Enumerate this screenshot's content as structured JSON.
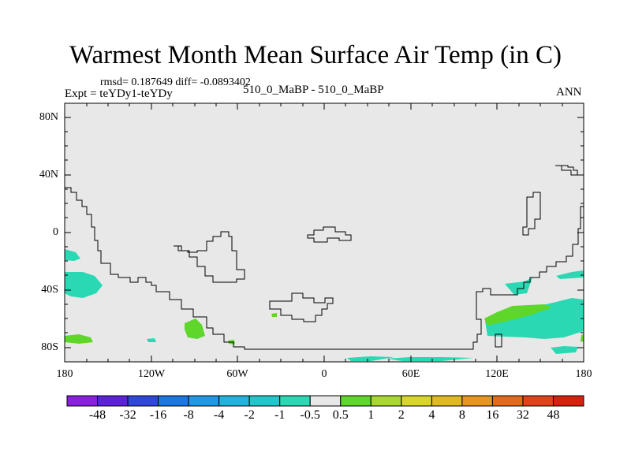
{
  "title": "Warmest Month Mean Surface Air Temp (in C)",
  "stats": "rmsd= 0.187649  diff= -0.0893402",
  "experiment": "Expt = teYDy1-teYDy",
  "center_label": "510_0_MaBP - 510_0_MaBP",
  "period": "ANN",
  "lat_ticks": [
    "80N",
    "40N",
    "0",
    "40S",
    "80S"
  ],
  "lon_ticks": [
    "180",
    "120W",
    "60W",
    "0",
    "60E",
    "120E",
    "180"
  ],
  "colorbar": {
    "labels": [
      "-48",
      "-32",
      "-16",
      "-8",
      "-4",
      "-2",
      "-1",
      "-0.5",
      "0.5",
      "1",
      "2",
      "4",
      "8",
      "16",
      "32",
      "48"
    ],
    "colors": [
      "#8a1fe0",
      "#5b22d9",
      "#2f48dc",
      "#1a78e0",
      "#1f99e6",
      "#22b3dc",
      "#1fc6cc",
      "#2ad9b4",
      "#e8e8e8",
      "#5ed62a",
      "#a8d830",
      "#d9d62a",
      "#e0b81f",
      "#e6951f",
      "#e36a1a",
      "#e0421a",
      "#d8200f"
    ]
  },
  "colors": {
    "land_background": "#e8e8e8",
    "cool_anomaly": "#2ad9b4",
    "warm_anomaly": "#5ed62a"
  }
}
